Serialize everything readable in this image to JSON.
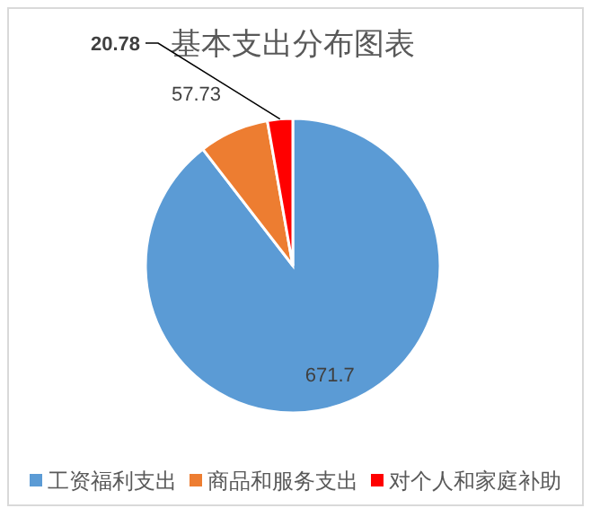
{
  "chart_data": {
    "type": "pie",
    "title": "基本支出分布图表",
    "categories": [
      "工资福利支出",
      "商品和服务支出",
      "对个人和家庭补助"
    ],
    "values": [
      671.7,
      57.73,
      20.78
    ],
    "colors": [
      "#5b9bd5",
      "#ed7d31",
      "#ff0000"
    ],
    "data_labels": true,
    "legend": "bottom"
  }
}
